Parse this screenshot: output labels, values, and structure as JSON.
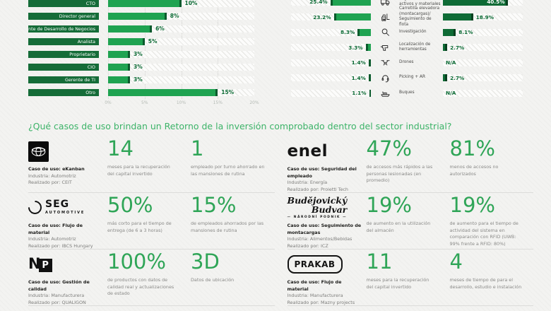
{
  "heading": "¿Qué casos de uso brindan un Retorno de la inversión comprobado dentro del sector industrial?",
  "colors": {
    "bar_green": "#1FA351",
    "bar_green_dark": "#0E6B35",
    "bar_tip_dark": "#0A5A2C",
    "label_box_green": "#156C38",
    "value_text_green": "#0C6B35",
    "heading_green": "#3CB368",
    "stat_green": "#2FA557",
    "muted_text": "#8a8a88",
    "axis_text": "#b4bab4"
  },
  "chart_data": [
    {
      "name": "roles",
      "type": "bar",
      "orientation": "horizontal",
      "title": "",
      "categories": [
        "CTO",
        "Director general",
        "Gerente de Desarrollo de Negocios",
        "Analista",
        "Proprietario",
        "CIO",
        "Gerente de TI",
        "Otro"
      ],
      "values": [
        10,
        8,
        6,
        5,
        3,
        3,
        3,
        15
      ],
      "value_labels": [
        "10%",
        "8%",
        "6%",
        "5%",
        "3%",
        "3%",
        "3%",
        "15%"
      ],
      "xlim": [
        0,
        20
      ],
      "x_ticks": [
        "0%",
        "5%",
        "10%",
        "15%",
        "20%"
      ],
      "grid": "dotted-vertical",
      "note": "first row partially cut off at top of screenshot"
    },
    {
      "name": "use-cases",
      "type": "bar",
      "orientation": "horizontal-mirrored",
      "xlim": [
        0,
        50
      ],
      "rows": [
        {
          "label": "Seguimiento de activos y materiales",
          "icon": "truck-icon",
          "left": 25.4,
          "left_label": "25.4%",
          "right": 40.5,
          "right_label": "40.5%",
          "right_label_inside": true
        },
        {
          "label": "Carretilla elevadora (montacargas)/ Seguimiento de flota",
          "icon": "forklift-icon",
          "left": 23.2,
          "left_label": "23.2%",
          "right": 18.9,
          "right_label": "18.9%"
        },
        {
          "label": "Investigación",
          "icon": "magnifier-icon",
          "left": 8.3,
          "left_label": "8.3%",
          "right": 8.1,
          "right_label": "8.1%"
        },
        {
          "label": "Localización de herramientas",
          "icon": "drill-icon",
          "left": 3.3,
          "left_label": "3.3%",
          "right": 2.7,
          "right_label": "2.7%"
        },
        {
          "label": "Drones",
          "icon": "drone-icon",
          "left": 1.4,
          "left_label": "1.4%",
          "right": null,
          "right_label": "N/A"
        },
        {
          "label": "Picking + AR",
          "icon": "headset-icon",
          "left": 1.4,
          "left_label": "1.4%",
          "right": 2.7,
          "right_label": "2.7%"
        },
        {
          "label": "Buques",
          "icon": "ship-icon",
          "left": 1.1,
          "left_label": "1.1%",
          "right": null,
          "right_label": "N/A"
        }
      ]
    }
  ],
  "cases": [
    {
      "logo": "toyota",
      "use_case": "Caso de uso: eKanban",
      "industry": "Industria: Automotriz",
      "partner": "Realizado por: CEIT",
      "stats": [
        {
          "value": "14",
          "caption": "meses para la recuperación del capital invertido"
        },
        {
          "value": "1",
          "caption": "empleado por turno ahorrado en las mansiones de rutina"
        }
      ]
    },
    {
      "logo": "enel",
      "use_case": "Caso de uso: Seguridad del empleado",
      "industry": "Industria: Energía",
      "partner": "Realizado por: Proietti Tech",
      "stats": [
        {
          "value": "47%",
          "caption": "de accesos más rápidos a las personas lesionadas (en promedio)"
        },
        {
          "value": "81%",
          "caption": "menos de accesos no autorizados"
        }
      ]
    },
    {
      "logo": "seg",
      "use_case": "Caso de uso: Flujo de material",
      "industry": "Industria: Automotriz",
      "partner": "Realizado por: IBCS Hungary",
      "stats": [
        {
          "value": "50%",
          "caption": "más corto para el tiempo de entrega (de 6 a 3 horas)"
        },
        {
          "value": "15%",
          "caption": "de empleados ahorrados por las mansiones de rutina"
        }
      ]
    },
    {
      "logo": "budvar",
      "use_case": "Caso de uso: Seguimiento de montacargas",
      "industry": "Industria: Alimentos/Bebidas",
      "partner": "Realizado por: ICZ",
      "stats": [
        {
          "value": "19%",
          "caption": "de aumento en la utilización del almacén"
        },
        {
          "value": "19%",
          "caption": "de aumento para el tiempo de actividad del sistema en comparación con RFID (UWB: 99% frente a RFID: 80%)"
        }
      ]
    },
    {
      "logo": "np",
      "use_case": "Caso de uso: Gestión de calidad",
      "industry": "Industria: Manufacturera",
      "partner": "Realizado por: QUALIGON",
      "stats": [
        {
          "value": "100%",
          "caption": "de productos con datos de calidad real y actualizaciones de estado"
        },
        {
          "value": "3D",
          "caption": "Datos de ubicación"
        }
      ]
    },
    {
      "logo": "prakab",
      "use_case": "Caso de uso: Flujo de material",
      "industry": "Industria: Manufacturera",
      "partner": "Realizado por: Mazny projects",
      "stats": [
        {
          "value": "11",
          "caption": "meses para la recuperación del capital invertido"
        },
        {
          "value": "4",
          "caption": "meses de tiempo de para el desarrollo, estudio e instalación"
        }
      ]
    }
  ],
  "logos": {
    "toyota": {
      "name": "Toyota"
    },
    "enel": {
      "text": "enel"
    },
    "seg": {
      "text": "SEG",
      "sub": "AUTOMOTIVE"
    },
    "budvar": {
      "line1": "Budějovický",
      "line2": "Budvar",
      "sub": "NÁRODNÍ PODNIK"
    },
    "np": {
      "n": "N",
      "p": "P"
    },
    "prakab": {
      "text": "PRAKAB"
    }
  }
}
